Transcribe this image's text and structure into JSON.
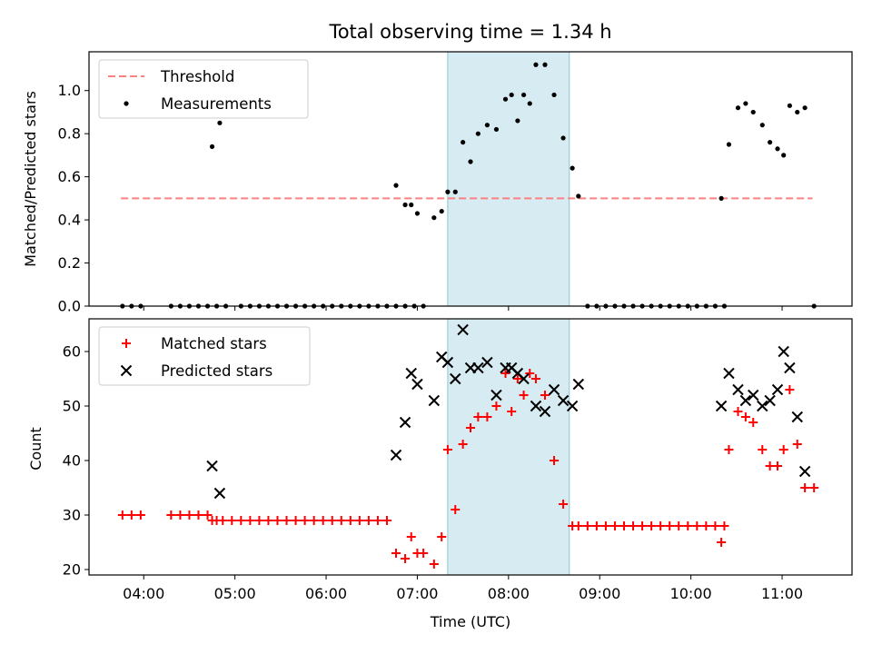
{
  "chart_data": [
    {
      "type": "scatter",
      "title": "Total observing time = 1.34 h",
      "xlabel": "",
      "ylabel": "Matched/Predicted stars",
      "ylim": [
        0,
        1.18
      ],
      "yticks": [
        "0.0",
        "0.2",
        "0.4",
        "0.6",
        "0.8",
        "1.0"
      ],
      "xlim": [
        "03:24",
        "11:46"
      ],
      "grid": false,
      "legend_position": "top-left",
      "highlight_interval": {
        "start": "07:20",
        "end": "08:40",
        "color": "#add8e6"
      },
      "series": [
        {
          "name": "Threshold",
          "style": "dashed-line",
          "color": "#ff8080",
          "x": [
            "03:45",
            "11:20"
          ],
          "y": [
            0.5,
            0.5
          ]
        },
        {
          "name": "Measurements",
          "style": "dot",
          "color": "#000000",
          "x": [
            "03:46",
            "03:52",
            "03:58",
            "04:18",
            "04:24",
            "04:30",
            "04:36",
            "04:42",
            "04:48",
            "04:54",
            "04:45",
            "04:50",
            "05:04",
            "05:10",
            "05:16",
            "05:22",
            "05:28",
            "05:34",
            "05:40",
            "05:46",
            "05:52",
            "05:58",
            "06:04",
            "06:10",
            "06:16",
            "06:22",
            "06:28",
            "06:34",
            "06:40",
            "06:46",
            "06:52",
            "06:58",
            "06:46",
            "06:52",
            "06:56",
            "07:00",
            "07:04",
            "07:11",
            "07:16",
            "07:25",
            "07:20",
            "07:30",
            "07:35",
            "07:40",
            "07:46",
            "07:52",
            "07:58",
            "08:02",
            "08:06",
            "08:10",
            "08:14",
            "08:18",
            "08:24",
            "08:30",
            "08:36",
            "08:42",
            "08:46",
            "08:52",
            "08:58",
            "09:04",
            "09:10",
            "09:16",
            "09:22",
            "09:28",
            "09:34",
            "09:40",
            "09:46",
            "09:52",
            "09:58",
            "10:04",
            "10:10",
            "10:16",
            "10:22",
            "10:20",
            "10:25",
            "10:31",
            "10:36",
            "10:41",
            "10:47",
            "10:52",
            "10:57",
            "11:01",
            "11:05",
            "11:10",
            "11:15",
            "11:21"
          ],
          "y": [
            0,
            0,
            0,
            0,
            0,
            0,
            0,
            0,
            0,
            0,
            0.74,
            0.85,
            0,
            0,
            0,
            0,
            0,
            0,
            0,
            0,
            0,
            0,
            0,
            0,
            0,
            0,
            0,
            0,
            0,
            0,
            0,
            0,
            0.56,
            0.47,
            0.47,
            0.43,
            0,
            0.41,
            0.44,
            0.53,
            0.53,
            0.76,
            0.67,
            0.8,
            0.84,
            0.82,
            0.96,
            0.98,
            0.86,
            0.98,
            0.94,
            1.12,
            1.12,
            0.98,
            0.78,
            0.64,
            0.51,
            0,
            0,
            0,
            0,
            0,
            0,
            0,
            0,
            0,
            0,
            0,
            0,
            0,
            0,
            0,
            0,
            0.5,
            0.75,
            0.92,
            0.94,
            0.9,
            0.84,
            0.76,
            0.73,
            0.7,
            0.93,
            0.9,
            0.92,
            0
          ]
        }
      ]
    },
    {
      "type": "scatter",
      "title": "",
      "xlabel": "Time (UTC)",
      "ylabel": "Count",
      "ylim": [
        19,
        66
      ],
      "yticks": [
        "20",
        "30",
        "40",
        "50",
        "60"
      ],
      "xlim": [
        "03:24",
        "11:46"
      ],
      "xticks": [
        "04:00",
        "05:00",
        "06:00",
        "07:00",
        "08:00",
        "09:00",
        "10:00",
        "11:00"
      ],
      "grid": false,
      "legend_position": "top-left",
      "highlight_interval": {
        "start": "07:20",
        "end": "08:40",
        "color": "#add8e6"
      },
      "series": [
        {
          "name": "Matched stars",
          "style": "plus",
          "color": "#ff0000",
          "x": [
            "03:46",
            "03:52",
            "03:58",
            "04:18",
            "04:24",
            "04:30",
            "04:36",
            "04:42",
            "04:48",
            "04:45",
            "04:52",
            "04:58",
            "05:04",
            "05:10",
            "05:16",
            "05:22",
            "05:28",
            "05:34",
            "05:40",
            "05:46",
            "05:52",
            "05:58",
            "06:04",
            "06:10",
            "06:16",
            "06:22",
            "06:28",
            "06:34",
            "06:40",
            "06:46",
            "06:52",
            "06:56",
            "07:00",
            "07:04",
            "07:11",
            "07:16",
            "07:25",
            "07:20",
            "07:30",
            "07:35",
            "07:40",
            "07:46",
            "07:52",
            "07:58",
            "08:02",
            "08:06",
            "08:10",
            "08:14",
            "08:18",
            "08:24",
            "08:30",
            "08:36",
            "08:42",
            "08:46",
            "08:52",
            "08:58",
            "09:04",
            "09:10",
            "09:16",
            "09:22",
            "09:28",
            "09:34",
            "09:40",
            "09:46",
            "09:52",
            "09:58",
            "10:04",
            "10:10",
            "10:16",
            "10:22",
            "10:20",
            "10:25",
            "10:31",
            "10:36",
            "10:41",
            "10:47",
            "10:52",
            "10:57",
            "11:01",
            "11:05",
            "11:10",
            "11:15",
            "11:21"
          ],
          "y": [
            30,
            30,
            30,
            30,
            30,
            30,
            30,
            30,
            29,
            29,
            29,
            29,
            29,
            29,
            29,
            29,
            29,
            29,
            29,
            29,
            29,
            29,
            29,
            29,
            29,
            29,
            29,
            29,
            29,
            23,
            22,
            26,
            23,
            23,
            21,
            26,
            31,
            42,
            43,
            46,
            48,
            48,
            50,
            56,
            49,
            55,
            52,
            56,
            55,
            52,
            40,
            32,
            28,
            28,
            28,
            28,
            28,
            28,
            28,
            28,
            28,
            28,
            28,
            28,
            28,
            28,
            28,
            28,
            28,
            28,
            25,
            42,
            49,
            48,
            47,
            42,
            39,
            39,
            42,
            53,
            43,
            35,
            35
          ]
        },
        {
          "name": "Predicted stars",
          "style": "x",
          "color": "#000000",
          "x": [
            "04:45",
            "04:50",
            "06:46",
            "06:52",
            "06:56",
            "07:00",
            "07:11",
            "07:16",
            "07:20",
            "07:25",
            "07:30",
            "07:35",
            "07:40",
            "07:46",
            "07:52",
            "07:58",
            "08:02",
            "08:06",
            "08:10",
            "08:18",
            "08:24",
            "08:30",
            "08:36",
            "08:42",
            "08:46",
            "10:20",
            "10:25",
            "10:31",
            "10:36",
            "10:41",
            "10:47",
            "10:52",
            "10:57",
            "11:01",
            "11:05",
            "11:10",
            "11:15"
          ],
          "y": [
            39,
            34,
            41,
            47,
            56,
            54,
            51,
            59,
            58,
            55,
            64,
            57,
            57,
            58,
            52,
            57,
            57,
            56,
            55,
            50,
            49,
            53,
            51,
            50,
            54,
            50,
            56,
            53,
            51,
            52,
            50,
            51,
            53,
            60,
            57,
            48,
            38
          ]
        }
      ]
    }
  ]
}
